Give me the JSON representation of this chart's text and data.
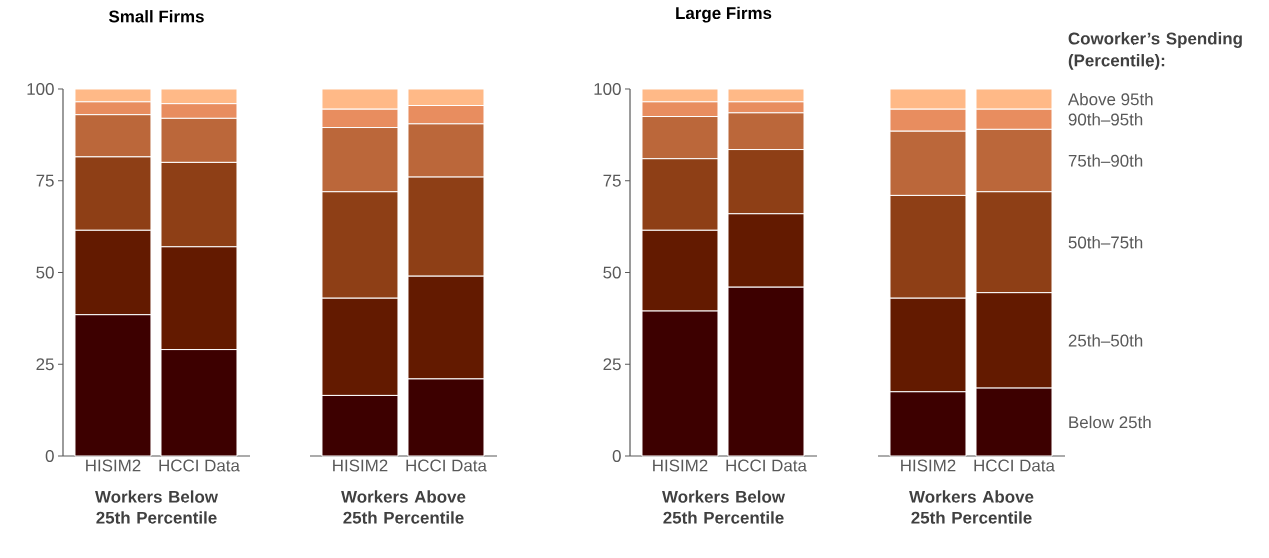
{
  "chart_data": [
    {
      "type": "bar",
      "stacked": true,
      "title": "Small Firms",
      "xlabel": "Workers Below 25th Percentile",
      "categories": [
        "HISIM2",
        "HCCI Data"
      ],
      "ylim": [
        0,
        100
      ],
      "yticks": [
        0,
        25,
        50,
        75,
        100
      ],
      "series": [
        {
          "color": "#3d0000",
          "values": [
            38.5,
            29
          ]
        },
        {
          "color": "#631a00",
          "values": [
            23,
            28
          ]
        },
        {
          "color": "#8e3f16",
          "values": [
            20,
            23
          ]
        },
        {
          "color": "#bb673a",
          "values": [
            11.5,
            12
          ]
        },
        {
          "color": "#e88d5f",
          "values": [
            3.5,
            4
          ]
        },
        {
          "color": "#ffb987",
          "values": [
            3.5,
            4
          ]
        }
      ]
    },
    {
      "type": "bar",
      "stacked": true,
      "xlabel": "Workers Above 25th Percentile",
      "categories": [
        "HISIM2",
        "HCCI Data"
      ],
      "ylim": [
        0,
        100
      ],
      "yticks": [
        0,
        25,
        50,
        75,
        100
      ],
      "tick_labels": "x",
      "series": [
        {
          "color": "#3d0000",
          "values": [
            16.5,
            21
          ]
        },
        {
          "color": "#631a00",
          "values": [
            26.5,
            28
          ]
        },
        {
          "color": "#8e3f16",
          "values": [
            29,
            27
          ]
        },
        {
          "color": "#bb673a",
          "values": [
            17.5,
            14.5
          ]
        },
        {
          "color": "#e88d5f",
          "values": [
            5,
            5
          ]
        },
        {
          "color": "#ffb987",
          "values": [
            5.5,
            4.5
          ]
        }
      ]
    },
    {
      "type": "bar",
      "stacked": true,
      "title": "Large Firms",
      "xlabel": "Workers Below 25th Percentile",
      "categories": [
        "HISIM2",
        "HCCI Data"
      ],
      "ylim": [
        0,
        100
      ],
      "yticks": [
        0,
        25,
        50,
        75,
        100
      ],
      "series": [
        {
          "color": "#3d0000",
          "values": [
            39.5,
            46
          ]
        },
        {
          "color": "#631a00",
          "values": [
            22,
            20
          ]
        },
        {
          "color": "#8e3f16",
          "values": [
            19.5,
            17.5
          ]
        },
        {
          "color": "#bb673a",
          "values": [
            11.5,
            10
          ]
        },
        {
          "color": "#e88d5f",
          "values": [
            4,
            3
          ]
        },
        {
          "color": "#ffb987",
          "values": [
            3.5,
            3.5
          ]
        }
      ]
    },
    {
      "type": "bar",
      "stacked": true,
      "xlabel": "Workers Above 25th Percentile",
      "categories": [
        "HISIM2",
        "HCCI Data"
      ],
      "ylim": [
        0,
        100
      ],
      "yticks": [
        0,
        25,
        50,
        75,
        100
      ],
      "tick_labels": "x",
      "legend": "right",
      "legend_title": "Coworker’s Spending (Percentile):",
      "series": [
        {
          "name": "Below 25th",
          "color": "#3d0000",
          "values": [
            17.5,
            18.5
          ]
        },
        {
          "name": "25th–50th",
          "color": "#631a00",
          "values": [
            25.5,
            26
          ]
        },
        {
          "name": "50th–75th",
          "color": "#8e3f16",
          "values": [
            28,
            27.5
          ]
        },
        {
          "name": "75th–90th",
          "color": "#bb673a",
          "values": [
            17.5,
            17
          ]
        },
        {
          "name": "90th–95th",
          "color": "#e88d5f",
          "values": [
            6,
            5.5
          ]
        },
        {
          "name": "Above 95th",
          "color": "#ffb987",
          "values": [
            5.5,
            5.5
          ]
        }
      ]
    }
  ]
}
